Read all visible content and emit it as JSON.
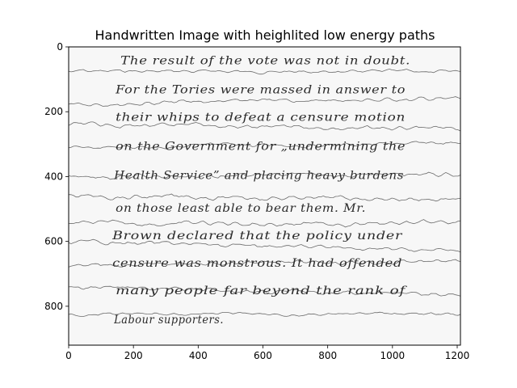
{
  "figure": {
    "title": "Handwritten Image with heighlited low energy paths",
    "x_axis": {
      "ticks": [
        0,
        200,
        400,
        600,
        800,
        1000,
        1200
      ],
      "range": [
        0,
        1210
      ]
    },
    "y_axis": {
      "ticks": [
        0,
        200,
        400,
        600,
        800
      ],
      "range": [
        920,
        0
      ],
      "inverted": true
    },
    "colors": {
      "frame": "#000000",
      "paper": "#f7f7f7",
      "ink": "#2a2a2a",
      "path_line": "#6a6a6a"
    }
  },
  "handwriting": {
    "lines": [
      "The result of the vote was not in doubt.",
      "For the Tories were massed in answer to",
      "their whips to defeat a censure motion",
      "on the Government for „undermining the",
      "Health Service” and placing heavy burdens",
      "on those least able to bear them. Mr.",
      "Brown declared that the policy under",
      "censure was monstrous. It had offended",
      "many people far beyond the rank of",
      "Labour supporters."
    ]
  },
  "low_energy_paths": [
    {
      "start_y": 75,
      "end_y": 78,
      "amplitude": 9
    },
    {
      "start_y": 175,
      "end_y": 160,
      "amplitude": 11
    },
    {
      "start_y": 240,
      "end_y": 255,
      "amplitude": 11
    },
    {
      "start_y": 310,
      "end_y": 298,
      "amplitude": 10
    },
    {
      "start_y": 400,
      "end_y": 393,
      "amplitude": 12
    },
    {
      "start_y": 460,
      "end_y": 470,
      "amplitude": 12
    },
    {
      "start_y": 545,
      "end_y": 545,
      "amplitude": 12
    },
    {
      "start_y": 600,
      "end_y": 630,
      "amplitude": 11
    },
    {
      "start_y": 675,
      "end_y": 660,
      "amplitude": 11
    },
    {
      "start_y": 740,
      "end_y": 765,
      "amplitude": 11
    },
    {
      "start_y": 825,
      "end_y": 825,
      "amplitude": 8
    }
  ]
}
